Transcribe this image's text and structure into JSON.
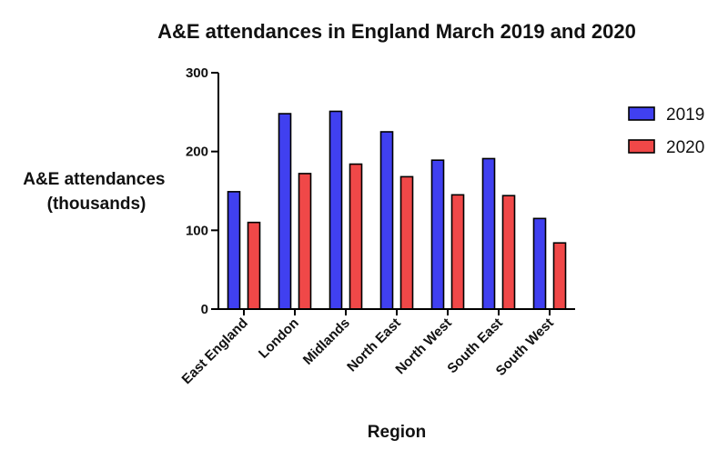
{
  "chart_data": {
    "type": "bar",
    "title": "A&E attendances in England March 2019 and 2020",
    "xlabel": "Region",
    "ylabel": [
      "A&E attendances",
      "(thousands)"
    ],
    "ylim": [
      0,
      300
    ],
    "yticks": [
      0,
      100,
      200,
      300
    ],
    "categories": [
      "East England",
      "London",
      "Midlands",
      "North East",
      "North West",
      "South East",
      "South West"
    ],
    "series": [
      {
        "name": "2019",
        "color": "#4040f0",
        "values": [
          149,
          248,
          251,
          225,
          189,
          191,
          115
        ]
      },
      {
        "name": "2020",
        "color": "#f04848",
        "values": [
          110,
          172,
          184,
          168,
          145,
          144,
          84
        ]
      }
    ],
    "legend": "right",
    "grid": false
  }
}
